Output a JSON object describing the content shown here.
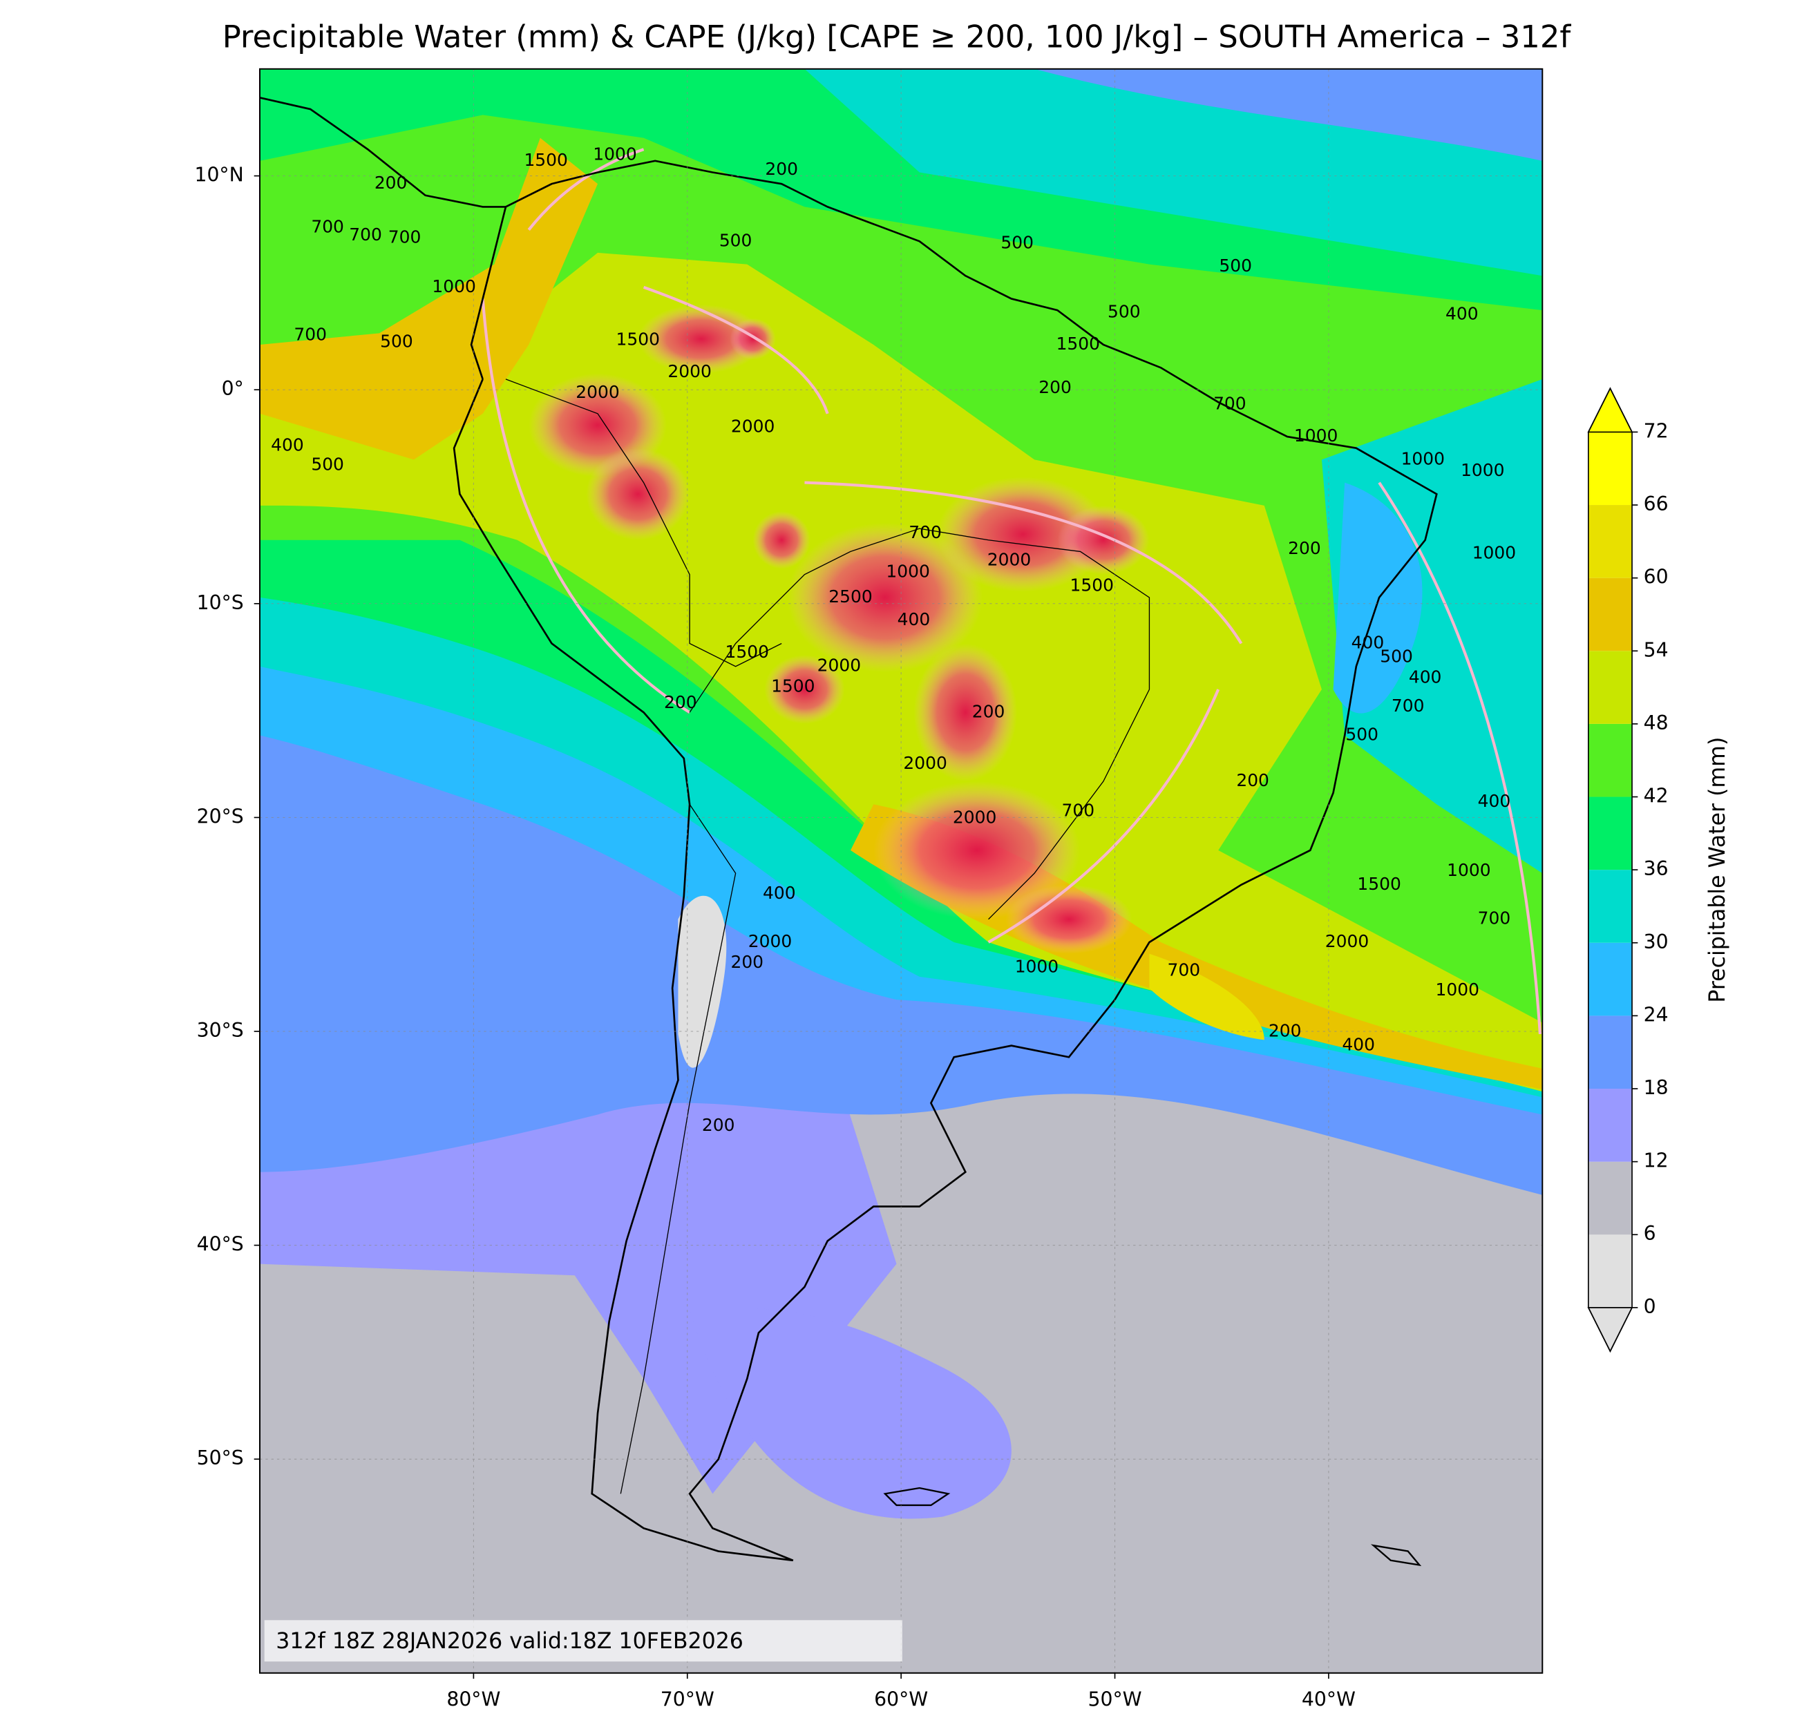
{
  "chart_data": {
    "type": "map",
    "title": "Precipitable Water (mm) & CAPE (J/kg) [CAPE ≥ 200, 100 J/kg] – SOUTH America – 312f",
    "xlim": [
      -90,
      -30
    ],
    "ylim": [
      -60,
      15
    ],
    "xticks": [
      {
        "value": -80,
        "label": "80°W"
      },
      {
        "value": -70,
        "label": "70°W"
      },
      {
        "value": -60,
        "label": "60°W"
      },
      {
        "value": -50,
        "label": "50°W"
      },
      {
        "value": -40,
        "label": "40°W"
      }
    ],
    "yticks": [
      {
        "value": 10,
        "label": "10°N"
      },
      {
        "value": 0,
        "label": "0°"
      },
      {
        "value": -10,
        "label": "10°S"
      },
      {
        "value": -20,
        "label": "20°S"
      },
      {
        "value": -30,
        "label": "30°S"
      },
      {
        "value": -40,
        "label": "40°S"
      },
      {
        "value": -50,
        "label": "50°S"
      }
    ],
    "grid": true,
    "colorbar": {
      "label": "Precipitable Water (mm)",
      "levels": [
        0,
        6,
        12,
        18,
        24,
        30,
        36,
        42,
        48,
        54,
        60,
        66,
        72
      ],
      "colors": [
        "#e0e0e0",
        "#bdbdc6",
        "#9999ff",
        "#6699ff",
        "#29bbff",
        "#00dccc",
        "#00ee66",
        "#55ee22",
        "#c8e600",
        "#e8c400",
        "#e8e000",
        "#ffff00"
      ],
      "extend": "both"
    },
    "annotation": "312f 18Z 28JAN2026 valid:18Z 10FEB2026",
    "contour_labels": [
      1500,
      1000,
      200,
      500,
      500,
      500,
      400,
      500,
      1000,
      500,
      700,
      1500,
      2000,
      2000,
      2000,
      1500,
      200,
      700,
      1000,
      1000,
      1000,
      200,
      1000,
      700,
      2000,
      1000,
      2500,
      400,
      1500,
      2000,
      1500,
      200,
      200,
      1500,
      400,
      500,
      400,
      700,
      500,
      2000,
      2000,
      700,
      200,
      1000,
      400,
      1500,
      700,
      2000,
      1000,
      700,
      1000,
      400,
      2000,
      200,
      200,
      400,
      200,
      400,
      500,
      700,
      700,
      700,
      200
    ]
  }
}
